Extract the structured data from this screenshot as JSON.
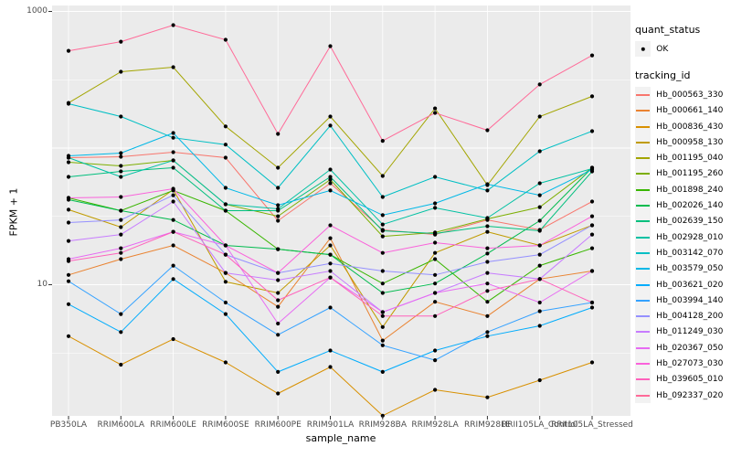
{
  "chart_data": {
    "type": "line",
    "title": "",
    "xlabel": "sample_name",
    "ylabel": "FPKM + 1",
    "y_scale": "log10",
    "ylim": [
      1,
      1000
    ],
    "y_ticks": [
      {
        "value": 1000,
        "label": "1000"
      },
      {
        "value": 10,
        "label": "10"
      }
    ],
    "y_major_gridlines": [
      1000,
      100,
      10
    ],
    "y_minor_gridlines": [
      316.2,
      31.62,
      3.162
    ],
    "grid_on": true,
    "panel_bg": "#EBEBEB",
    "grid_color": "#FFFFFF",
    "point_color": "#000000",
    "legend_position": "right",
    "categories": [
      "PB350LA",
      "RRIM600LA",
      "RRIM600LE",
      "RRIM600SE",
      "RRIM600PE",
      "RRIM901LA",
      "RRIM928BA",
      "RRIM928LA",
      "RRIM928LE",
      "RRII105LA_Control",
      "RRII105LA_Stressed"
    ],
    "series": [
      {
        "name": "Hb_000563_330",
        "color": "#F8766D",
        "values": [
          85.1,
          86.4,
          93.3,
          85.1,
          29.4,
          55.3,
          25.2,
          23.3,
          29.8,
          25.2,
          40.6
        ]
      },
      {
        "name": "Hb_000661_140",
        "color": "#EA8331",
        "values": [
          11.8,
          15.4,
          19.4,
          12.2,
          6.9,
          21.9,
          3.9,
          7.5,
          5.9,
          11.0,
          12.6
        ]
      },
      {
        "name": "Hb_000836_430",
        "color": "#D89000",
        "values": [
          4.2,
          2.6,
          4.0,
          2.7,
          1.6,
          2.5,
          1.1,
          1.7,
          1.5,
          2.0,
          2.7
        ]
      },
      {
        "name": "Hb_000958_130",
        "color": "#C09B00",
        "values": [
          35.4,
          26.4,
          49.6,
          10.5,
          8.7,
          19.4,
          4.9,
          17.1,
          24.4,
          19.4,
          27.2
        ]
      },
      {
        "name": "Hb_001195_040",
        "color": "#A3A500",
        "values": [
          214,
          362,
          391,
          144,
          71.8,
          170,
          62.5,
          195,
          53.6,
          170,
          239
        ]
      },
      {
        "name": "Hb_001195_260",
        "color": "#7CAE00",
        "values": [
          78.8,
          74.1,
          81.2,
          38.8,
          31.7,
          58.8,
          22.6,
          24.1,
          30.3,
          37.0,
          71.8
        ]
      },
      {
        "name": "Hb_001898_240",
        "color": "#39B600",
        "values": [
          43.2,
          34.8,
          48.9,
          34.8,
          18.2,
          16.6,
          10.2,
          15.4,
          7.5,
          13.8,
          18.5
        ]
      },
      {
        "name": "Hb_002026_140",
        "color": "#00BB4E",
        "values": [
          41.9,
          34.8,
          29.8,
          19.4,
          18.2,
          16.6,
          8.7,
          10.2,
          16.9,
          29.4,
          71.8
        ]
      },
      {
        "name": "Hb_002639_150",
        "color": "#00BF7D",
        "values": [
          61.6,
          67.5,
          71.8,
          34.8,
          34.8,
          61.6,
          24.8,
          23.7,
          26.8,
          24.8,
          67.5
        ]
      },
      {
        "name": "Hb_002928_010",
        "color": "#00C1A3",
        "values": [
          85.1,
          61.6,
          81.2,
          38.8,
          35.9,
          69.6,
          27.6,
          36.5,
          30.8,
          55.3,
          70.7
        ]
      },
      {
        "name": "Hb_003142_070",
        "color": "#00BFC4",
        "values": [
          211,
          170,
          119,
          106,
          51.2,
          146,
          43.9,
          61.6,
          48.9,
          94.8,
          133
        ]
      },
      {
        "name": "Hb_003579_050",
        "color": "#00B8E7",
        "values": [
          87.7,
          91.9,
          129,
          51.2,
          38.2,
          48.9,
          32.3,
          39.4,
          54.4,
          45.2,
          69.6
        ]
      },
      {
        "name": "Hb_003621_020",
        "color": "#00ACFC",
        "values": [
          7.2,
          4.5,
          11.0,
          6.1,
          2.3,
          3.3,
          2.3,
          3.3,
          4.2,
          5.0,
          6.8
        ]
      },
      {
        "name": "Hb_003994_140",
        "color": "#35A2FF",
        "values": [
          10.6,
          6.1,
          13.8,
          7.4,
          4.3,
          6.8,
          3.6,
          2.8,
          4.5,
          6.4,
          7.4
        ]
      },
      {
        "name": "Hb_004128_200",
        "color": "#9590FF",
        "values": [
          28.5,
          29.8,
          45.2,
          16.6,
          12.2,
          14.3,
          12.6,
          11.8,
          14.7,
          16.6,
          27.2
        ]
      },
      {
        "name": "Hb_011249_030",
        "color": "#C77CFF",
        "values": [
          20.9,
          23.3,
          40.6,
          12.2,
          10.8,
          12.6,
          6.3,
          8.7,
          12.2,
          11.0,
          23.3
        ]
      },
      {
        "name": "Hb_020367_050",
        "color": "#E76BF3",
        "values": [
          15.4,
          18.5,
          24.4,
          19.4,
          5.2,
          11.3,
          6.3,
          8.7,
          10.2,
          7.4,
          12.6
        ]
      },
      {
        "name": "Hb_027073_030",
        "color": "#FA62DB",
        "values": [
          43.2,
          43.9,
          50.4,
          19.4,
          12.2,
          27.2,
          17.1,
          20.3,
          18.5,
          19.4,
          31.7
        ]
      },
      {
        "name": "Hb_039605_010",
        "color": "#FF62BC",
        "values": [
          14.9,
          17.1,
          24.4,
          16.6,
          7.7,
          11.3,
          5.9,
          5.9,
          9.0,
          11.0,
          7.4
        ]
      },
      {
        "name": "Hb_092337_020",
        "color": "#FF6A98",
        "values": [
          515,
          601,
          794,
          620,
          127,
          557,
          113,
          181,
          135,
          292,
          477
        ]
      }
    ]
  },
  "legend": {
    "quant_status": {
      "title": "quant_status",
      "items": [
        {
          "label": "OK",
          "symbol": "point"
        }
      ]
    },
    "tracking_id_title": "tracking_id"
  }
}
